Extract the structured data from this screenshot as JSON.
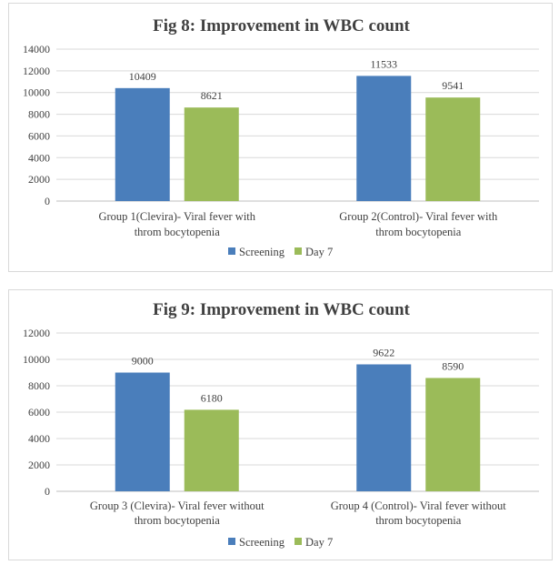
{
  "colors": {
    "screening": "#4a7ebb",
    "day7": "#9bbb59"
  },
  "chart_data": [
    {
      "type": "bar",
      "title": "Fig 8: Improvement in WBC count",
      "categories": [
        [
          "Group 1(Clevira)- Viral fever with",
          "throm bocytopenia"
        ],
        [
          "Group 2(Control)- Viral fever with",
          "throm bocytopenia"
        ]
      ],
      "series": [
        {
          "name": "Screening",
          "values": [
            10409,
            11533
          ]
        },
        {
          "name": "Day 7",
          "values": [
            8621,
            9541
          ]
        }
      ],
      "data_labels": [
        [
          "10409",
          "11533"
        ],
        [
          "8621",
          "9541"
        ]
      ],
      "ylim": [
        0,
        14000
      ],
      "yticks": [
        "0",
        "2000",
        "4000",
        "6000",
        "8000",
        "10000",
        "12000",
        "14000"
      ],
      "grid": true,
      "legend": "bottom"
    },
    {
      "type": "bar",
      "title": "Fig 9: Improvement in WBC count",
      "categories": [
        [
          "Group 3 (Clevira)- Viral fever without",
          "throm bocytopenia"
        ],
        [
          "Group 4 (Control)- Viral fever without",
          "throm bocytopenia"
        ]
      ],
      "series": [
        {
          "name": "Screening",
          "values": [
            9000,
            9622
          ]
        },
        {
          "name": "Day 7",
          "values": [
            6180,
            8590
          ]
        }
      ],
      "data_labels": [
        [
          "9000",
          "9622"
        ],
        [
          "6180",
          "8590"
        ]
      ],
      "ylim": [
        0,
        12000
      ],
      "yticks": [
        "0",
        "2000",
        "4000",
        "6000",
        "8000",
        "10000",
        "12000"
      ],
      "grid": true,
      "legend": "bottom"
    }
  ]
}
